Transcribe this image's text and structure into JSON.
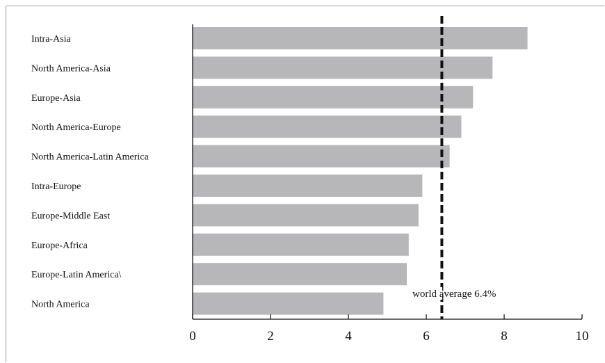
{
  "chart_data": {
    "type": "bar",
    "orientation": "horizontal",
    "categories": [
      "Intra-Asia",
      "North America-Asia",
      "Europe-Asia",
      "North America-Europe",
      "North America-Latin America",
      "Intra-Europe",
      "Europe-Middle East",
      "Europe-Africa",
      "Europe-Latin America\\",
      "North America"
    ],
    "values": [
      8.6,
      7.7,
      7.2,
      6.9,
      6.6,
      5.9,
      5.8,
      5.55,
      5.5,
      4.9
    ],
    "xlim": [
      0,
      10
    ],
    "xticks": [
      "0",
      "2",
      "4",
      "6",
      "8",
      "10"
    ],
    "reference_line": {
      "value": 6.4,
      "label": "world average 6.4%",
      "style": "dashed"
    },
    "bar_color": "#b7b7b9",
    "grid": false,
    "title": "",
    "xlabel": "",
    "ylabel": ""
  }
}
